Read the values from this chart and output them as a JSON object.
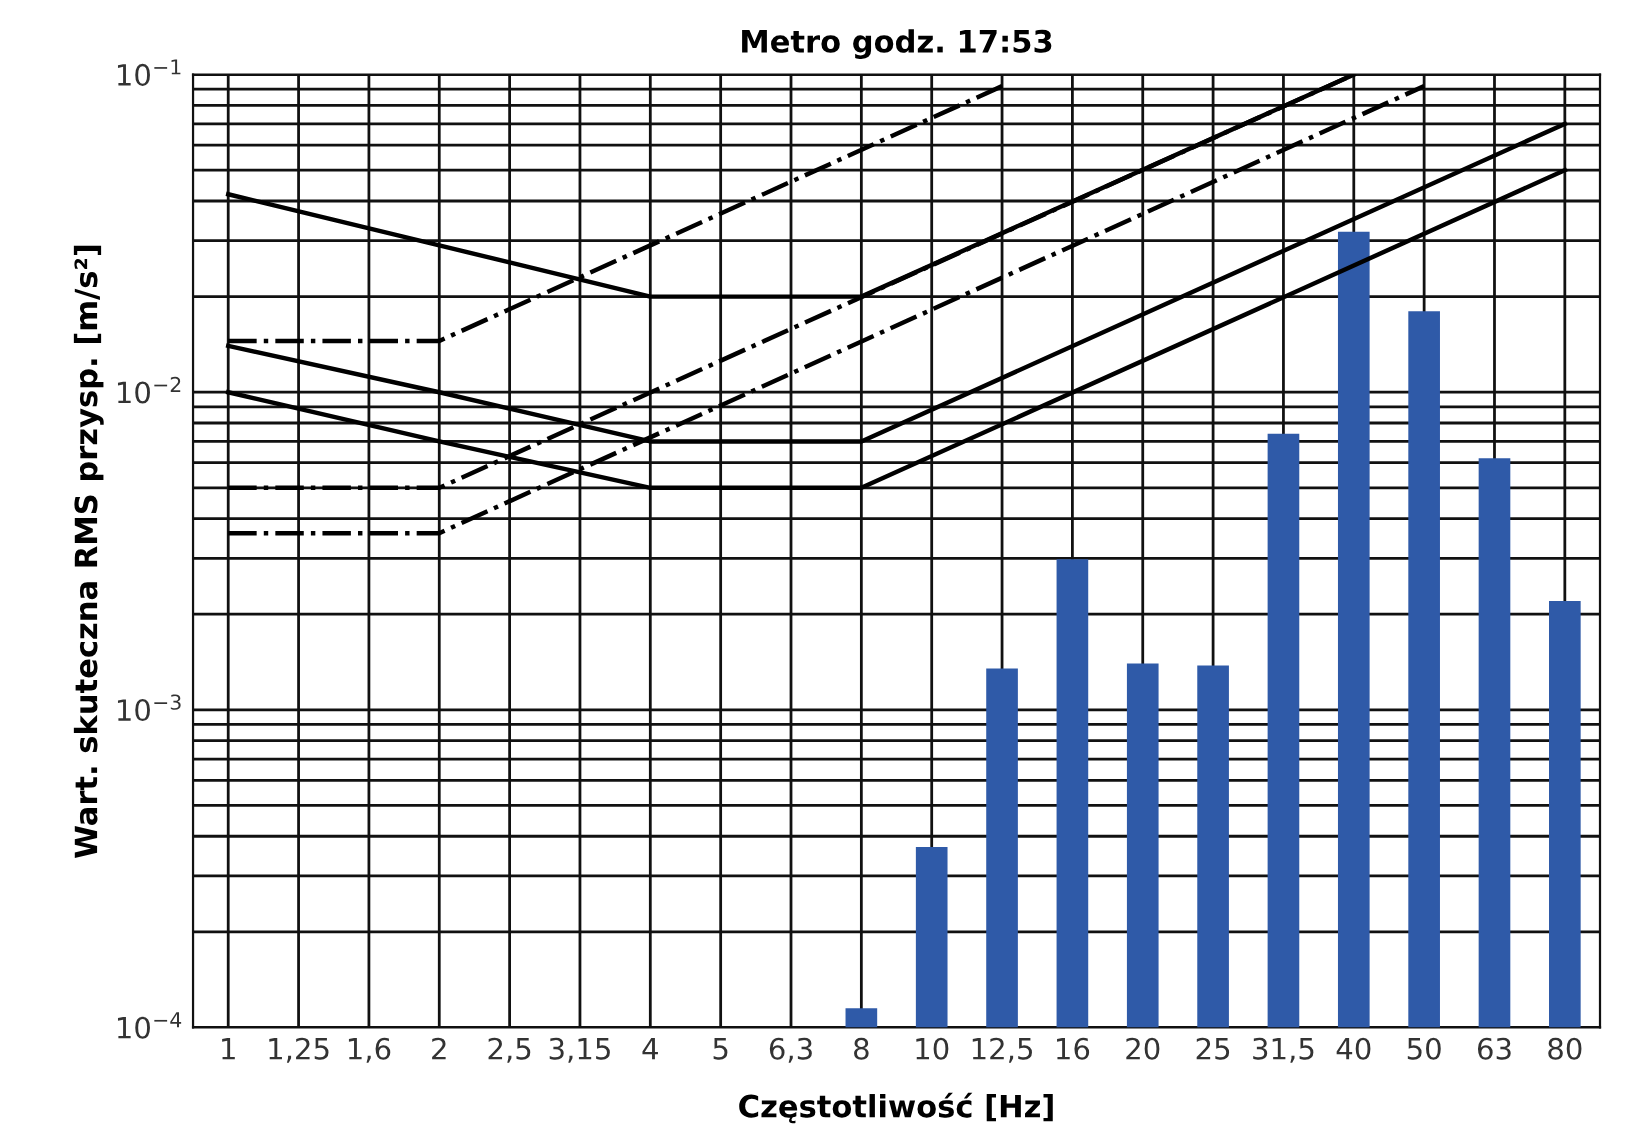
{
  "chart_data": {
    "type": "bar",
    "title": "Metro godz. 17:53",
    "xlabel": "Częstotliwość [Hz]",
    "ylabel": "Wart. skuteczna RMS przysp. [m/s²]",
    "categories": [
      "1",
      "1,25",
      "1,6",
      "2",
      "2,5",
      "3,15",
      "4",
      "5",
      "6,3",
      "8",
      "10",
      "12,5",
      "16",
      "20",
      "25",
      "31,5",
      "40",
      "50",
      "63",
      "80"
    ],
    "log": true,
    "grid": true,
    "ylim": [
      0.0001,
      0.1
    ],
    "yticks": [
      {
        "value": 0.0001,
        "label": "10$^{−4}$"
      },
      {
        "value": 0.0002,
        "label": null
      },
      {
        "value": 0.0003,
        "label": null
      },
      {
        "value": 0.0004,
        "label": null
      },
      {
        "value": 0.0005,
        "label": null
      },
      {
        "value": 0.0006,
        "label": null
      },
      {
        "value": 0.0007,
        "label": null
      },
      {
        "value": 0.0008,
        "label": null
      },
      {
        "value": 0.0009,
        "label": null
      },
      {
        "value": 0.001,
        "label": "10$^{−3}$"
      },
      {
        "value": 0.002,
        "label": null
      },
      {
        "value": 0.003,
        "label": null
      },
      {
        "value": 0.004,
        "label": null
      },
      {
        "value": 0.005,
        "label": null
      },
      {
        "value": 0.006,
        "label": null
      },
      {
        "value": 0.007,
        "label": null
      },
      {
        "value": 0.008,
        "label": null
      },
      {
        "value": 0.009,
        "label": null
      },
      {
        "value": 0.01,
        "label": "10$^{−2}$"
      },
      {
        "value": 0.02,
        "label": null
      },
      {
        "value": 0.03,
        "label": null
      },
      {
        "value": 0.04,
        "label": null
      },
      {
        "value": 0.05,
        "label": null
      },
      {
        "value": 0.06,
        "label": null
      },
      {
        "value": 0.07,
        "label": null
      },
      {
        "value": 0.08,
        "label": null
      },
      {
        "value": 0.09,
        "label": null
      },
      {
        "value": 0.1,
        "label": "10$^{−1}$"
      }
    ],
    "series": [
      {
        "color": "#2f5aa8",
        "values": [
          null,
          null,
          null,
          null,
          null,
          null,
          null,
          null,
          null,
          0.000115,
          0.00037,
          0.00135,
          0.00298,
          0.0014,
          0.00138,
          0.0074,
          0.032,
          0.018,
          0.0062,
          0.0022
        ]
      },
      {
        "type": "line",
        "color": "#000000",
        "line_style": "solid",
        "x": [
          "1",
          "2",
          "4",
          "8",
          "40"
        ],
        "values": [
          0.042,
          0.029,
          0.02,
          0.02,
          0.1
        ]
      },
      {
        "type": "line",
        "color": "#000000",
        "line_style": "solid",
        "x": [
          "1",
          "2",
          "4",
          "8",
          "80"
        ],
        "values": [
          0.014,
          0.01,
          0.007,
          0.007,
          0.07
        ]
      },
      {
        "type": "line",
        "color": "#000000",
        "line_style": "solid",
        "x": [
          "1",
          "2",
          "4",
          "8",
          "80"
        ],
        "values": [
          0.01,
          0.007,
          0.005,
          0.005,
          0.05
        ]
      },
      {
        "type": "line",
        "color": "#000000",
        "line_style": "dashed",
        "x": [
          "1",
          "2",
          "12,5"
        ],
        "values": [
          0.0145,
          0.0145,
          0.092
        ]
      },
      {
        "type": "line",
        "color": "#000000",
        "line_style": "dashed",
        "x": [
          "1",
          "2",
          "40"
        ],
        "values": [
          0.005,
          0.005,
          0.1
        ]
      },
      {
        "type": "line",
        "color": "#000000",
        "line_style": "dashed",
        "x": [
          "1",
          "2",
          "50"
        ],
        "values": [
          0.0036,
          0.0036,
          0.092
        ]
      }
    ]
  }
}
